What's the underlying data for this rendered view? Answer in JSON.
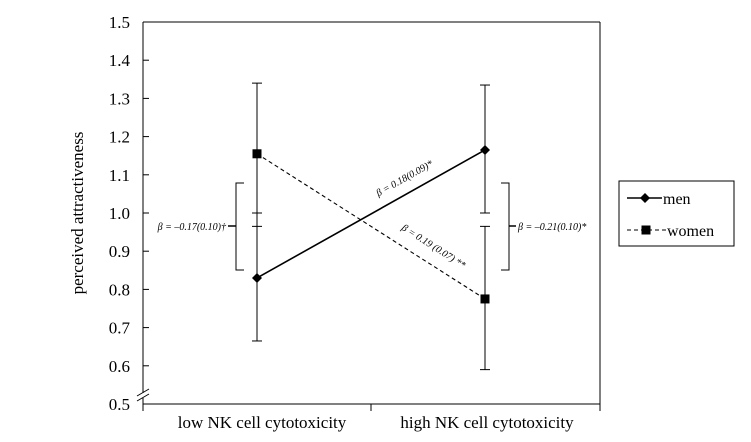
{
  "chart_data": {
    "type": "line",
    "title": "",
    "xlabel": "",
    "ylabel": "perceived attractiveness",
    "categories": [
      "low NK cell cytotoxicity",
      "high NK cell cytotoxicity"
    ],
    "ylim": [
      0.5,
      1.5
    ],
    "yticks": [
      "0.5",
      "0.6",
      "0.7",
      "0.8",
      "0.9",
      "1.0",
      "1.1",
      "1.2",
      "1.3",
      "1.4",
      "1.5"
    ],
    "grid": false,
    "legend_position": "right",
    "series": [
      {
        "name": "men",
        "values": [
          0.83,
          1.165
        ],
        "error_low": [
          0.665,
          1.0
        ],
        "error_high": [
          1.0,
          1.335
        ],
        "marker": "diamond",
        "line_style": "solid"
      },
      {
        "name": "women",
        "values": [
          1.155,
          0.775
        ],
        "error_low": [
          0.965,
          0.59
        ],
        "error_high": [
          1.34,
          0.965
        ],
        "marker": "square",
        "line_style": "dashed"
      }
    ],
    "annotations": {
      "men_slope": "β = 0.18(0.09)*",
      "women_slope": "β = 0.19 (0.07) **",
      "low_sex_diff": "β = –0.17(0.10)†",
      "high_sex_diff": "β = –0.21(0.10)*"
    }
  }
}
